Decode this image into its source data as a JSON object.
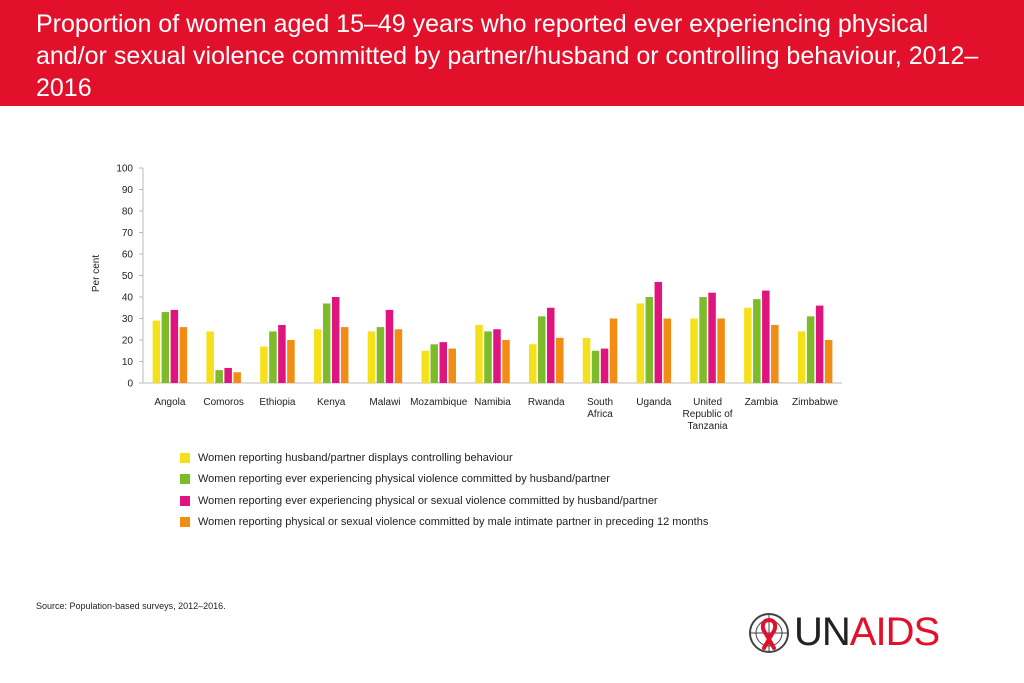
{
  "header": {
    "title": "Proportion of women aged 15–49 years who reported ever experiencing physical and/or sexual violence committed by partner/husband or controlling behaviour, 2012–2016"
  },
  "colors": {
    "header_bg": "#e2102b",
    "series": [
      "#f5e11a",
      "#7dbb2a",
      "#e0147f",
      "#f28c12"
    ]
  },
  "chart_data": {
    "type": "bar",
    "ylabel": "Per cent",
    "ylim": [
      0,
      100
    ],
    "yticks": [
      "0",
      "10",
      "20",
      "30",
      "40",
      "50",
      "60",
      "70",
      "80",
      "90",
      "100"
    ],
    "grid": false,
    "legend_position": "bottom",
    "categories": [
      [
        "Angola"
      ],
      [
        "Comoros"
      ],
      [
        "Ethiopia"
      ],
      [
        "Kenya"
      ],
      [
        "Malawi"
      ],
      [
        "Mozambique"
      ],
      [
        "Namibia"
      ],
      [
        "Rwanda"
      ],
      [
        "South",
        "Africa"
      ],
      [
        "Uganda"
      ],
      [
        "United",
        "Republic of",
        "Tanzania"
      ],
      [
        "Zambia"
      ],
      [
        "Zimbabwe"
      ]
    ],
    "series": [
      {
        "name": "Women reporting husband/partner displays controlling behaviour",
        "values": [
          29,
          24,
          17,
          25,
          24,
          15,
          27,
          18,
          21,
          37,
          30,
          35,
          24
        ]
      },
      {
        "name": "Women reporting ever experiencing physical violence committed by husband/partner",
        "values": [
          33,
          6,
          24,
          37,
          26,
          18,
          24,
          31,
          15,
          40,
          40,
          39,
          31
        ]
      },
      {
        "name": "Women reporting ever experiencing physical or sexual violence committed by husband/partner",
        "values": [
          34,
          7,
          27,
          40,
          34,
          19,
          25,
          35,
          16,
          47,
          42,
          43,
          36
        ]
      },
      {
        "name": "Women reporting physical or sexual violence committed by male intimate partner in preceding 12 months",
        "values": [
          26,
          5,
          20,
          26,
          25,
          16,
          20,
          21,
          30,
          30,
          30,
          27,
          20
        ]
      }
    ]
  },
  "source": {
    "label": "Source:",
    "text": " Population-based surveys, 2012–2016."
  },
  "logo": {
    "part1": "UN",
    "part2": "AIDS",
    "icon": "un-emblem-ribbon-icon"
  }
}
